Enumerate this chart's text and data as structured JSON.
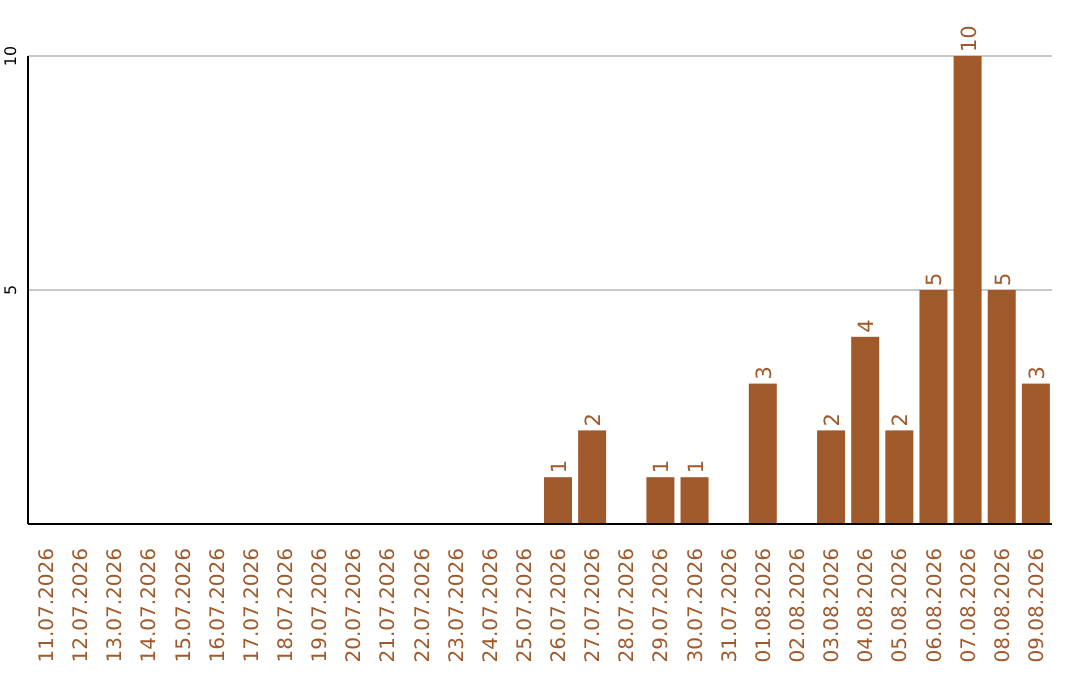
{
  "chart_data": {
    "type": "bar",
    "categories": [
      "11.07.2026",
      "12.07.2026",
      "13.07.2026",
      "14.07.2026",
      "15.07.2026",
      "16.07.2026",
      "17.07.2026",
      "18.07.2026",
      "19.07.2026",
      "20.07.2026",
      "21.07.2026",
      "22.07.2026",
      "23.07.2026",
      "24.07.2026",
      "25.07.2026",
      "26.07.2026",
      "27.07.2026",
      "28.07.2026",
      "29.07.2026",
      "30.07.2026",
      "31.07.2026",
      "01.08.2026",
      "02.08.2026",
      "03.08.2026",
      "04.08.2026",
      "05.08.2026",
      "06.08.2026",
      "07.08.2026",
      "08.08.2026",
      "09.08.2026"
    ],
    "values": [
      0,
      0,
      0,
      0,
      0,
      0,
      0,
      0,
      0,
      0,
      0,
      0,
      0,
      0,
      0,
      1,
      2,
      0,
      1,
      1,
      0,
      3,
      0,
      2,
      4,
      2,
      5,
      10,
      5,
      3
    ],
    "value_labels": [
      null,
      null,
      null,
      null,
      null,
      null,
      null,
      null,
      null,
      null,
      null,
      null,
      null,
      null,
      null,
      "1",
      "2",
      null,
      "1",
      "1",
      null,
      "3",
      null,
      "2",
      "4",
      "2",
      "5",
      "10",
      "5",
      "3"
    ],
    "color": "#a0592a",
    "ylim": [
      0,
      10
    ],
    "yticks": [
      5,
      10
    ],
    "grid": "y"
  }
}
